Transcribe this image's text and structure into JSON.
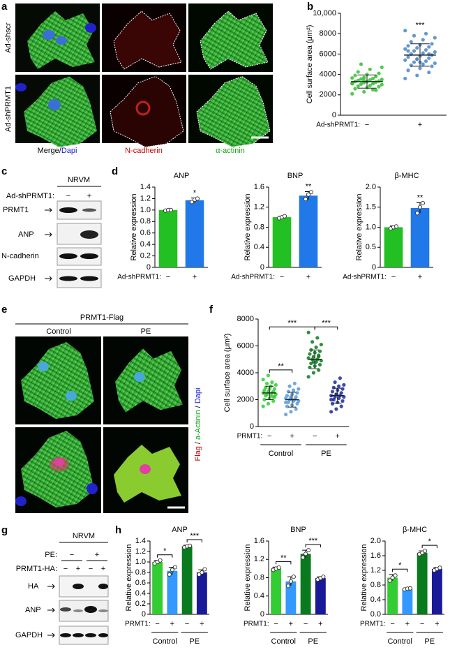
{
  "panel_labels": [
    "a",
    "b",
    "c",
    "d",
    "e",
    "f",
    "g",
    "h"
  ],
  "panel_a": {
    "rows": [
      "Ad-shscr",
      "Ad-shPRMT1"
    ],
    "columns": [
      "Merge/",
      "Dapi",
      "N-cadherin",
      "α-actinin"
    ]
  },
  "panel_c": {
    "title": "NRVM",
    "condition_label": "Ad-shPRMT1:",
    "conditions": [
      "−",
      "+"
    ],
    "bands": [
      "PRMT1",
      "ANP",
      "N-cadherin",
      "GAPDH"
    ]
  },
  "panel_e": {
    "title": "PRMT1-Flag",
    "columns": [
      "Control",
      "PE"
    ],
    "side_label": [
      "Flag",
      "/",
      "a-Actinin",
      "/",
      "Dapi"
    ]
  },
  "panel_g": {
    "title": "NRVM",
    "conditions": [
      {
        "label": "PE:",
        "values": [
          "−",
          "+"
        ]
      },
      {
        "label": "PRMT1-HA:",
        "values": [
          "−",
          "+",
          "−",
          "+"
        ]
      }
    ],
    "bands": [
      "HA",
      "ANP",
      "GAPDH"
    ]
  },
  "chart_data": [
    {
      "type": "strip",
      "ylabel": "Cell surface area (μm²)",
      "x_label": "Ad-shPRMT1:",
      "categories": [
        "−",
        "+"
      ],
      "colors": [
        "#33c033",
        "#4a86c8"
      ],
      "points": [
        [
          2100,
          2300,
          2450,
          2600,
          2700,
          2800,
          2850,
          2900,
          3000,
          3050,
          3100,
          3150,
          3200,
          3250,
          3300,
          3300,
          3350,
          3400,
          3450,
          3500,
          3550,
          3600,
          3650,
          3700,
          3800,
          3900,
          4000,
          4100,
          4250,
          4500,
          4700,
          5000,
          2500,
          3100,
          3400
        ],
        [
          3600,
          3900,
          4200,
          4400,
          4600,
          4800,
          4900,
          5000,
          5100,
          5200,
          5300,
          5400,
          5500,
          5600,
          5700,
          5800,
          5900,
          6000,
          6100,
          6200,
          6300,
          6400,
          6500,
          6600,
          6700,
          6800,
          6900,
          7000,
          7200,
          7400,
          7600,
          7800,
          8000,
          8300,
          5500,
          6000,
          6300,
          5200
        ]
      ],
      "means": [
        3300,
        5900
      ],
      "sds": [
        650,
        1100
      ],
      "annotations": [
        null,
        "***"
      ],
      "ylim": [
        0,
        10000
      ],
      "yticks": [
        0,
        2000,
        4000,
        6000,
        8000,
        {
          "value": 10000,
          "label": "10,000"
        }
      ]
    },
    {
      "type": "bar",
      "title": "ANP",
      "ylabel": "Relative expression",
      "x_label": "Ad-shPRMT1:",
      "categories": [
        "−",
        "+"
      ],
      "colors": [
        "#22c022",
        "#2178e8"
      ],
      "values": [
        1.0,
        1.17
      ],
      "errors": [
        0.01,
        0.04
      ],
      "points": [
        [
          0.99,
          1.0,
          1.0
        ],
        [
          1.14,
          1.18,
          1.2
        ]
      ],
      "annotations": [
        null,
        "*"
      ],
      "ylim": [
        0,
        1.4
      ],
      "yticks": [
        0,
        0.2,
        0.4,
        0.6,
        0.8,
        {
          "value": 1,
          "label": "1.0"
        },
        1.2,
        1.4
      ]
    },
    {
      "type": "bar",
      "title": "BNP",
      "ylabel": "Relative expression",
      "x_label": "Ad-shPRMT1:",
      "categories": [
        "−",
        "+"
      ],
      "colors": [
        "#22c022",
        "#2178e8"
      ],
      "values": [
        1.0,
        1.43
      ],
      "errors": [
        0.02,
        0.08
      ],
      "points": [
        [
          0.98,
          1.0,
          1.02
        ],
        [
          1.36,
          1.45,
          1.5
        ]
      ],
      "annotations": [
        null,
        "**"
      ],
      "ylim": [
        0,
        1.6
      ],
      "yticks": [
        0,
        0.4,
        0.8,
        1.2,
        1.6
      ]
    },
    {
      "type": "bar",
      "title": "β-MHC",
      "ylabel": "Relative expression",
      "x_label": "Ad-shPRMT1:",
      "categories": [
        "−",
        "+"
      ],
      "colors": [
        "#22c022",
        "#2178e8"
      ],
      "values": [
        1.0,
        1.48
      ],
      "errors": [
        0.03,
        0.13
      ],
      "points": [
        [
          0.97,
          1.0,
          1.02
        ],
        [
          1.35,
          1.5,
          1.6
        ]
      ],
      "annotations": [
        null,
        "**"
      ],
      "ylim": [
        0,
        2.0
      ],
      "yticks": [
        0,
        0.5,
        {
          "value": 1,
          "label": "1.0"
        },
        1.5,
        {
          "value": 2,
          "label": "2.0"
        }
      ]
    },
    {
      "type": "strip",
      "ylabel": "Cell surface area (μm²)",
      "x_label": "PRMT1:",
      "categories": [
        "−",
        "+",
        "−",
        "+"
      ],
      "groups": [
        "Control",
        "PE"
      ],
      "colors": [
        "#33cc33",
        "#5a9ad8",
        "#0a7a1e",
        "#1a2a99"
      ],
      "points": [
        [
          1500,
          1700,
          1900,
          2000,
          2100,
          2200,
          2300,
          2300,
          2400,
          2400,
          2500,
          2500,
          2600,
          2600,
          2700,
          2800,
          2800,
          2900,
          3000,
          3100,
          3200,
          3300,
          3500,
          3800,
          2200
        ],
        [
          900,
          1100,
          1300,
          1500,
          1600,
          1700,
          1800,
          1900,
          1900,
          2000,
          2000,
          2100,
          2100,
          2200,
          2300,
          2400,
          2500,
          2600,
          2700,
          2800,
          3000,
          3200,
          1800,
          2200
        ],
        [
          3700,
          4000,
          4200,
          4400,
          4500,
          4600,
          4700,
          4800,
          4900,
          5000,
          5000,
          5100,
          5200,
          5300,
          5400,
          5500,
          5600,
          5700,
          5900,
          6100,
          6300,
          6600,
          7000,
          4800,
          5200
        ],
        [
          1100,
          1300,
          1500,
          1700,
          1800,
          1900,
          2000,
          2100,
          2200,
          2200,
          2300,
          2300,
          2400,
          2500,
          2600,
          2700,
          2800,
          2900,
          3000,
          3100,
          3300,
          3600,
          2000,
          2400
        ]
      ],
      "means": [
        2500,
        2000,
        5000,
        2300
      ],
      "sds": [
        500,
        550,
        700,
        550
      ],
      "brackets": [
        {
          "groups": [
            0,
            1
          ],
          "label": "**"
        },
        {
          "groups": [
            0,
            2
          ],
          "label": "***"
        },
        {
          "groups": [
            2,
            3
          ],
          "label": "***"
        }
      ],
      "ylim": [
        0,
        8000
      ],
      "yticks": [
        0,
        2000,
        4000,
        6000,
        8000
      ]
    },
    {
      "type": "bar",
      "title": "ANP",
      "ylabel": "Relative expression",
      "x_label": "PRMT1:",
      "categories": [
        "−",
        "+",
        "−",
        "+"
      ],
      "groups": [
        "Control",
        "PE"
      ],
      "colors": [
        "#33cc33",
        "#3399ff",
        "#0a7a1e",
        "#1a1a99"
      ],
      "values": [
        1.0,
        0.83,
        1.3,
        0.8
      ],
      "errors": [
        0.03,
        0.07,
        0.02,
        0.05
      ],
      "points": [
        [
          0.97,
          1.0,
          1.03
        ],
        [
          0.76,
          0.85,
          0.9
        ],
        [
          1.28,
          1.3,
          1.31
        ],
        [
          0.76,
          0.8,
          0.86
        ]
      ],
      "brackets": [
        {
          "groups": [
            0,
            1
          ],
          "label": "*"
        },
        {
          "groups": [
            2,
            3
          ],
          "label": "***"
        }
      ],
      "ylim": [
        0,
        1.4
      ],
      "yticks": [
        0,
        0.2,
        0.4,
        0.6,
        0.8,
        {
          "value": 1,
          "label": "1.0"
        },
        1.2,
        1.4
      ]
    },
    {
      "type": "bar",
      "title": "BNP",
      "ylabel": "Relative expression",
      "x_label": "PRMT1:",
      "categories": [
        "−",
        "+",
        "−",
        "+"
      ],
      "groups": [
        "Control",
        "PE"
      ],
      "colors": [
        "#33cc33",
        "#3399ff",
        "#0a7a1e",
        "#1a1a99"
      ],
      "values": [
        1.0,
        0.72,
        1.32,
        0.79
      ],
      "errors": [
        0.03,
        0.1,
        0.08,
        0.03
      ],
      "points": [
        [
          0.97,
          1.0,
          1.02
        ],
        [
          0.62,
          0.72,
          0.82
        ],
        [
          1.24,
          1.32,
          1.4
        ],
        [
          0.76,
          0.79,
          0.82
        ]
      ],
      "brackets": [
        {
          "groups": [
            0,
            1
          ],
          "label": "**"
        },
        {
          "groups": [
            2,
            3
          ],
          "label": "***"
        }
      ],
      "ylim": [
        0,
        1.6
      ],
      "yticks": [
        0,
        0.4,
        0.8,
        1.2,
        1.6
      ]
    },
    {
      "type": "bar",
      "title": "β-MHC",
      "ylabel": "Relative expression",
      "x_label": "PRMT1:",
      "categories": [
        "−",
        "+",
        "−",
        "+"
      ],
      "groups": [
        "Control",
        "PE"
      ],
      "colors": [
        "#33cc33",
        "#3399ff",
        "#0a7a1e",
        "#1a1a99"
      ],
      "values": [
        1.0,
        0.7,
        1.68,
        1.24
      ],
      "errors": [
        0.08,
        0.02,
        0.05,
        0.04
      ],
      "points": [
        [
          0.92,
          1.0,
          1.06
        ],
        [
          0.68,
          0.7,
          0.71
        ],
        [
          1.64,
          1.68,
          1.73
        ],
        [
          1.2,
          1.24,
          1.27
        ]
      ],
      "brackets": [
        {
          "groups": [
            0,
            1
          ],
          "label": "*"
        },
        {
          "groups": [
            2,
            3
          ],
          "label": "*"
        }
      ],
      "ylim": [
        0,
        2.0
      ],
      "yticks": [
        {
          "value": 0,
          "label": "0.0"
        },
        0.4,
        0.8,
        1.2,
        1.6,
        {
          "value": 2,
          "label": "2.0"
        }
      ]
    }
  ]
}
